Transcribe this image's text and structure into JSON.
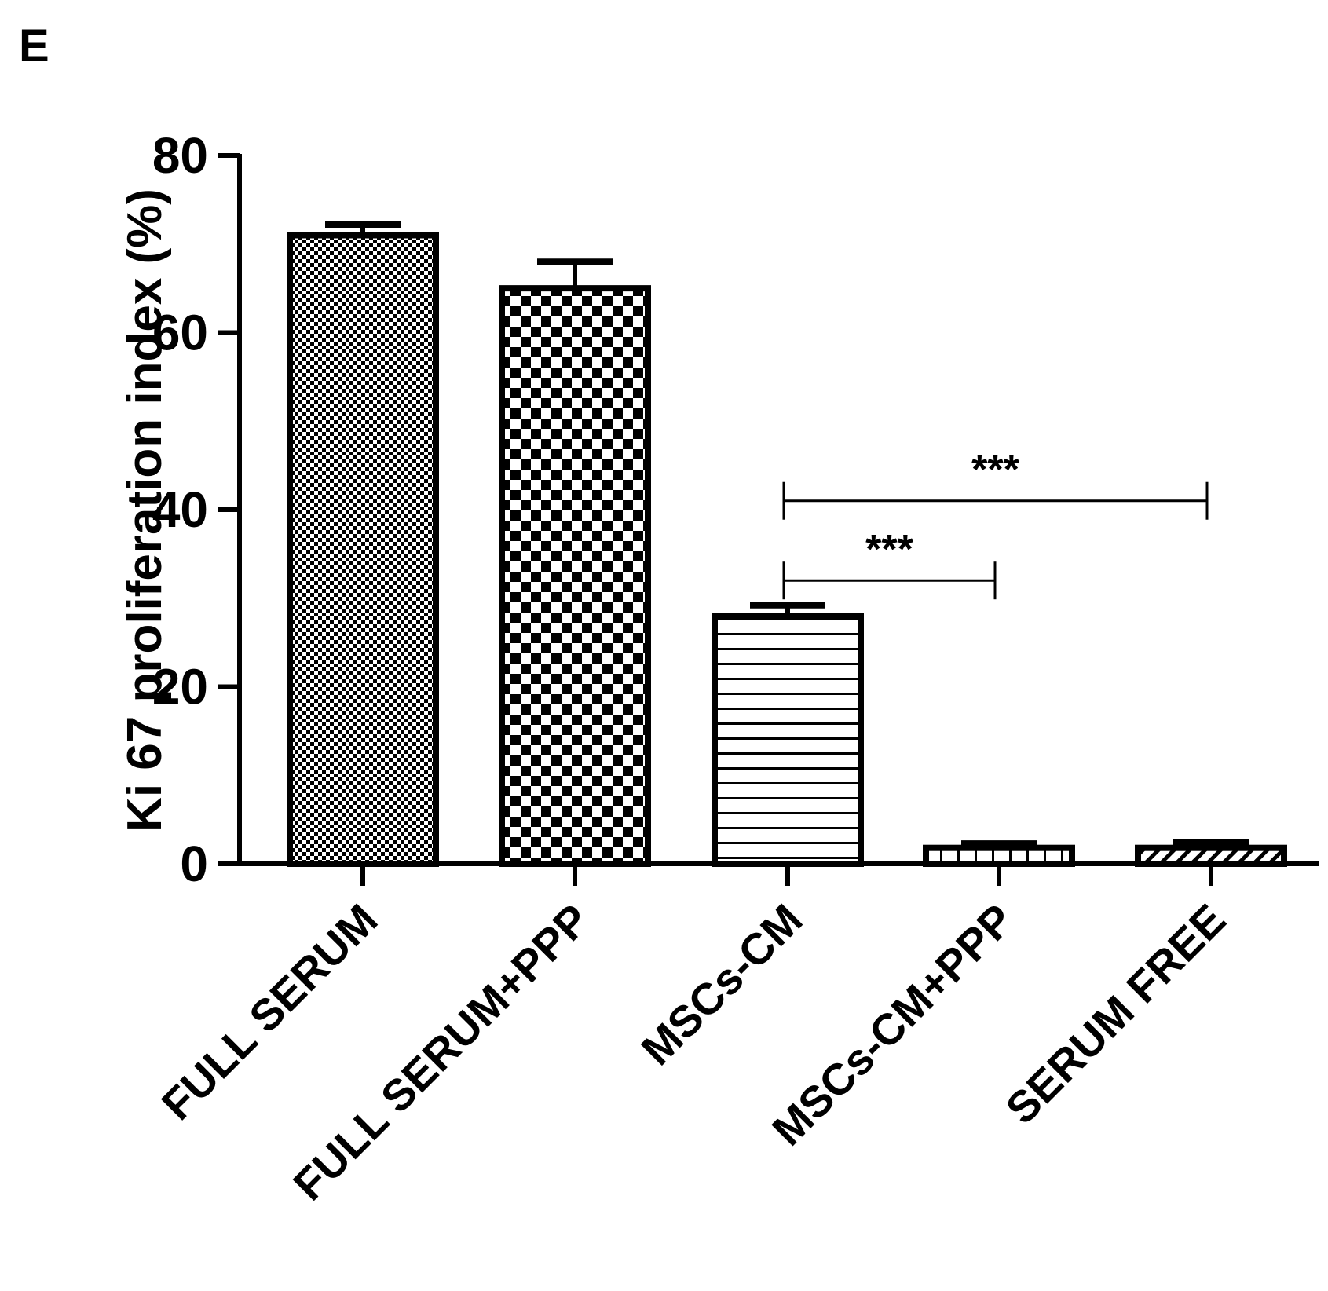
{
  "panel_label": "E",
  "colors": {
    "ink": "#000000",
    "background": "#ffffff"
  },
  "chart_data": {
    "type": "bar",
    "title": "",
    "xlabel": "",
    "ylabel": "Ki 67 proliferation index (%)",
    "ylim": [
      0,
      80
    ],
    "yticks": [
      "0",
      "20",
      "40",
      "60",
      "80"
    ],
    "categories": [
      "FULL SERUM",
      "FULL SERUM+PPP",
      "MSCs-CM",
      "MSCs-CM+PPP",
      "SERUM FREE"
    ],
    "values": [
      71,
      65,
      28,
      1.8,
      1.8
    ],
    "errors": [
      1.2,
      3.0,
      1.2,
      0.5,
      0.6
    ],
    "patterns": [
      "fine-checker",
      "checker",
      "horizontal-lines",
      "vertical-lines",
      "diagonal-lines"
    ],
    "grid": false,
    "significance": [
      {
        "from": "MSCs-CM",
        "to": "SERUM FREE",
        "label": "***",
        "y": 41
      },
      {
        "from": "MSCs-CM",
        "to": "MSCs-CM+PPP",
        "label": "***",
        "y": 32
      }
    ]
  }
}
